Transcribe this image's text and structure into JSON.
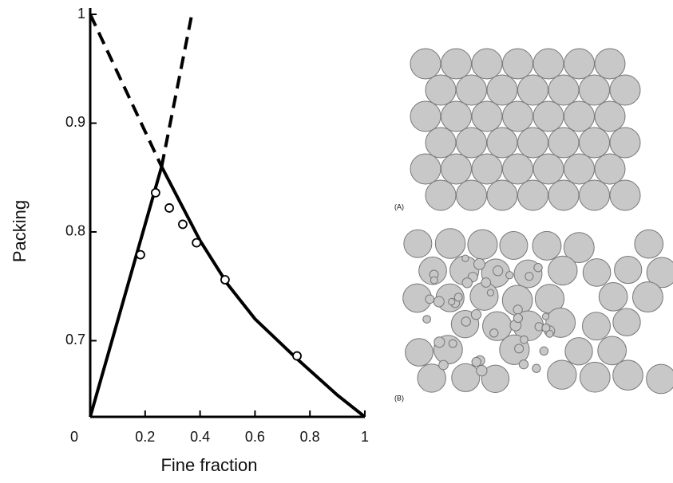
{
  "chart_data": {
    "type": "line",
    "xlabel": "Fine fraction",
    "ylabel": "Packing",
    "xlim": [
      0,
      1
    ],
    "ylim": [
      0.63,
      1.0
    ],
    "xticks": [
      0,
      0.2,
      0.4,
      0.6,
      0.8,
      1
    ],
    "yticks": [
      0.7,
      0.8,
      0.9,
      1
    ],
    "color": "#000000",
    "series": [
      {
        "mode": "line",
        "dash": false,
        "x": [
          0,
          0.26
        ],
        "values": [
          0.63,
          0.86
        ]
      },
      {
        "mode": "line",
        "dash": false,
        "x": [
          0.26,
          0.4,
          0.5,
          0.6,
          0.75,
          0.9,
          1
        ],
        "values": [
          0.86,
          0.792,
          0.752,
          0.72,
          0.684,
          0.65,
          0.63
        ]
      },
      {
        "mode": "line",
        "dash": true,
        "x": [
          0,
          0.26
        ],
        "values": [
          1.0,
          0.86
        ]
      },
      {
        "mode": "line",
        "dash": true,
        "x": [
          0.26,
          0.37
        ],
        "values": [
          0.86,
          1.0
        ]
      },
      {
        "mode": "markers",
        "dash": false,
        "x": [
          0.183,
          0.238,
          0.288,
          0.337,
          0.387,
          0.491,
          0.753
        ],
        "values": [
          0.779,
          0.836,
          0.822,
          0.807,
          0.79,
          0.756,
          0.686
        ]
      }
    ]
  },
  "diagram": {
    "panel_a_label": "(A)",
    "panel_b_label": "(B)"
  }
}
